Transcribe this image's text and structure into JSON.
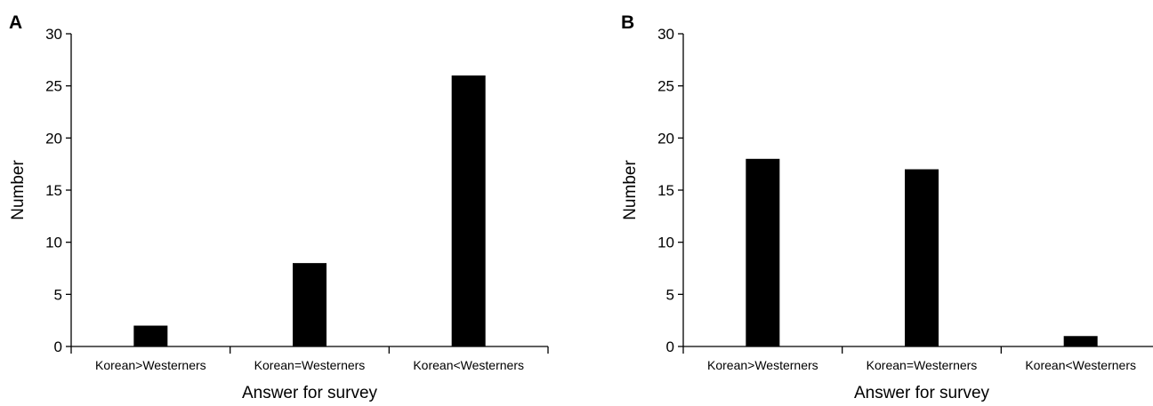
{
  "chart_data": [
    {
      "panel": "A",
      "type": "bar",
      "title": "",
      "xlabel": "Answer for survey",
      "ylabel": "Number",
      "categories": [
        "Korean>Westerners",
        "Korean=Westerners",
        "Korean<Westerners"
      ],
      "values": [
        2,
        8,
        26
      ],
      "ylim": [
        0,
        30
      ],
      "yticks": [
        0,
        5,
        10,
        15,
        20,
        25,
        30
      ],
      "grid": false,
      "legend": "none",
      "bar_color": "#000000"
    },
    {
      "panel": "B",
      "type": "bar",
      "title": "",
      "xlabel": "Answer for survey",
      "ylabel": "Number",
      "categories": [
        "Korean>Westerners",
        "Korean=Westerners",
        "Korean<Westerners"
      ],
      "values": [
        18,
        17,
        1
      ],
      "ylim": [
        0,
        30
      ],
      "yticks": [
        0,
        5,
        10,
        15,
        20,
        25,
        30
      ],
      "grid": false,
      "legend": "none",
      "bar_color": "#000000"
    }
  ]
}
